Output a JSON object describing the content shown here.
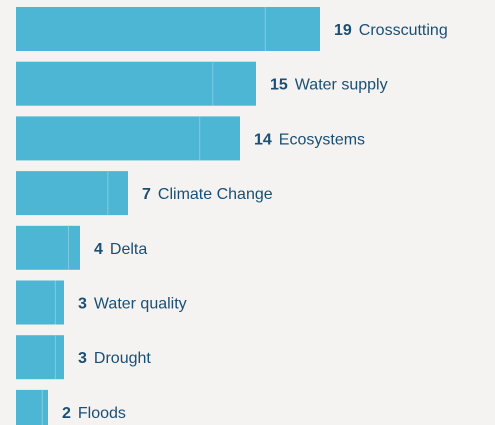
{
  "chart_data": {
    "type": "bar",
    "orientation": "horizontal",
    "categories": [
      "Crosscutting",
      "Water supply",
      "Ecosystems",
      "Climate Change",
      "Delta",
      "Water quality",
      "Drought",
      "Floods"
    ],
    "values": [
      19,
      15,
      14,
      7,
      4,
      3,
      3,
      2
    ],
    "title": "",
    "xlabel": "",
    "ylabel": "",
    "xlim": [
      0,
      19
    ],
    "grid": false,
    "legend": "none"
  },
  "colors": {
    "background": "#f4f3f1",
    "bar": "#4db6d4",
    "bar_seam": "#7fcbe2",
    "value_text": "#1a4f75",
    "label_text": "#1a4f75"
  }
}
